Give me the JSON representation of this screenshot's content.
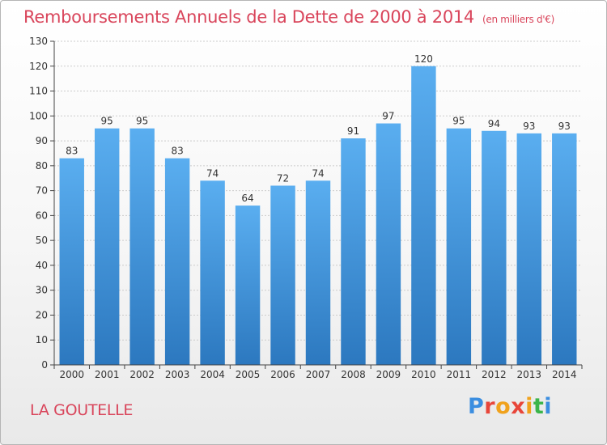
{
  "header": {
    "title": "Remboursements Annuels de la Dette de 2000 à 2014",
    "unit": "(en milliers d'€)"
  },
  "footer": {
    "place": "LA GOUTELLE",
    "logo_text": "Proxiti",
    "logo_colors": [
      "#3b8ee0",
      "#e8463a",
      "#f0a21c",
      "#e8463a",
      "#f0a21c",
      "#3bb54a",
      "#3b8ee0"
    ]
  },
  "chart_data": {
    "type": "bar",
    "categories": [
      "2000",
      "2001",
      "2002",
      "2003",
      "2004",
      "2005",
      "2006",
      "2007",
      "2008",
      "2009",
      "2010",
      "2011",
      "2012",
      "2013",
      "2014"
    ],
    "values": [
      83,
      95,
      95,
      83,
      74,
      64,
      72,
      74,
      91,
      97,
      120,
      95,
      94,
      93,
      93
    ],
    "title": "Remboursements Annuels de la Dette de 2000 à 2014",
    "ylim": [
      0,
      130
    ],
    "yticks": [
      0,
      10,
      20,
      30,
      40,
      50,
      60,
      70,
      80,
      90,
      100,
      110,
      120,
      130
    ],
    "grid": true,
    "colors": {
      "bar_top": "#5aaef0",
      "bar_bottom": "#2c78bf",
      "grid": "#cccccc",
      "axis": "#444444"
    }
  }
}
